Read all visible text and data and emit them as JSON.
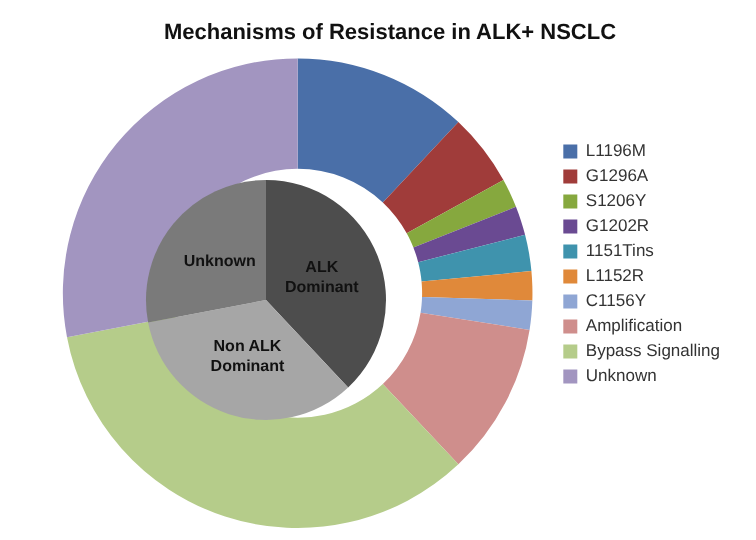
{
  "chart_data": [
    {
      "type": "donut",
      "title": "Mechanisms of Resistance in ALK+ NSCLC",
      "legend": "right",
      "categories": [
        "L1196M",
        "G1296A",
        "S1206Y",
        "G1202R",
        "1151Tins",
        "L1152R",
        "C1156Y",
        "Amplification",
        "Bypass Signalling",
        "Unknown"
      ],
      "values": [
        12,
        5,
        2,
        2,
        2.5,
        2,
        2,
        10.5,
        34,
        28
      ],
      "colors": [
        "#4a6fa8",
        "#a03c3a",
        "#86a83e",
        "#6a4a92",
        "#3f93ad",
        "#e0893a",
        "#8fa6d4",
        "#cf8e8c",
        "#b5cc8a",
        "#a295c0"
      ]
    },
    {
      "type": "pie",
      "legend": false,
      "categories": [
        "ALK Dominant",
        "Non ALK Dominant",
        "Unknown"
      ],
      "values": [
        38,
        34,
        28
      ],
      "colors": [
        "#4d4d4d",
        "#a6a6a6",
        "#7a7a7a"
      ]
    }
  ]
}
